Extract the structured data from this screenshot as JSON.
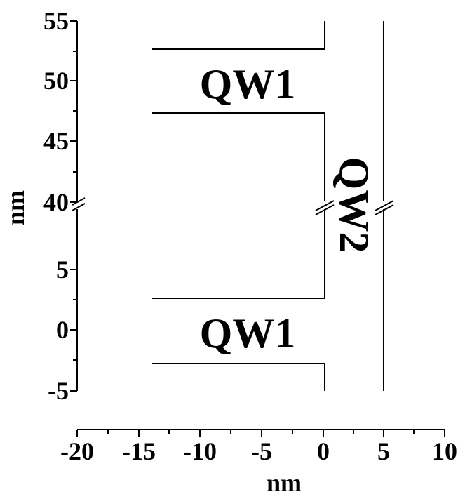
{
  "chart_data": {
    "type": "diagram",
    "xlabel": "nm",
    "ylabel": "nm",
    "xlim": [
      -20,
      10
    ],
    "x_ticks": [
      -20,
      -15,
      -10,
      -5,
      0,
      5,
      10
    ],
    "x_tick_labels": [
      "-20",
      "-15",
      "-10",
      "-5",
      "0",
      "5",
      "10"
    ],
    "y_ticks": [
      -5,
      0,
      5,
      40,
      45,
      50,
      55
    ],
    "y_tick_labels": [
      "-5",
      "0",
      "5",
      "40",
      "45",
      "50",
      "55"
    ],
    "y_axis_break": "between 5 and 40",
    "regions": [
      {
        "label": "QW1",
        "x_range": [
          -14,
          0
        ],
        "y_range": [
          47.3,
          52.7
        ],
        "position": "upper"
      },
      {
        "label": "QW1",
        "x_range": [
          -14,
          0
        ],
        "y_range": [
          -2.7,
          2.7
        ],
        "position": "lower"
      },
      {
        "label": "QW2",
        "x_range": [
          0,
          4.8
        ],
        "orientation": "vertical, rotated 90 degrees"
      }
    ],
    "outline": {
      "left_step_x": -14,
      "boundary_x": 0,
      "right_line_x": 4.8,
      "upper_edges_y": [
        47.3,
        52.7
      ],
      "lower_edges_y": [
        -2.7,
        2.7
      ]
    }
  }
}
